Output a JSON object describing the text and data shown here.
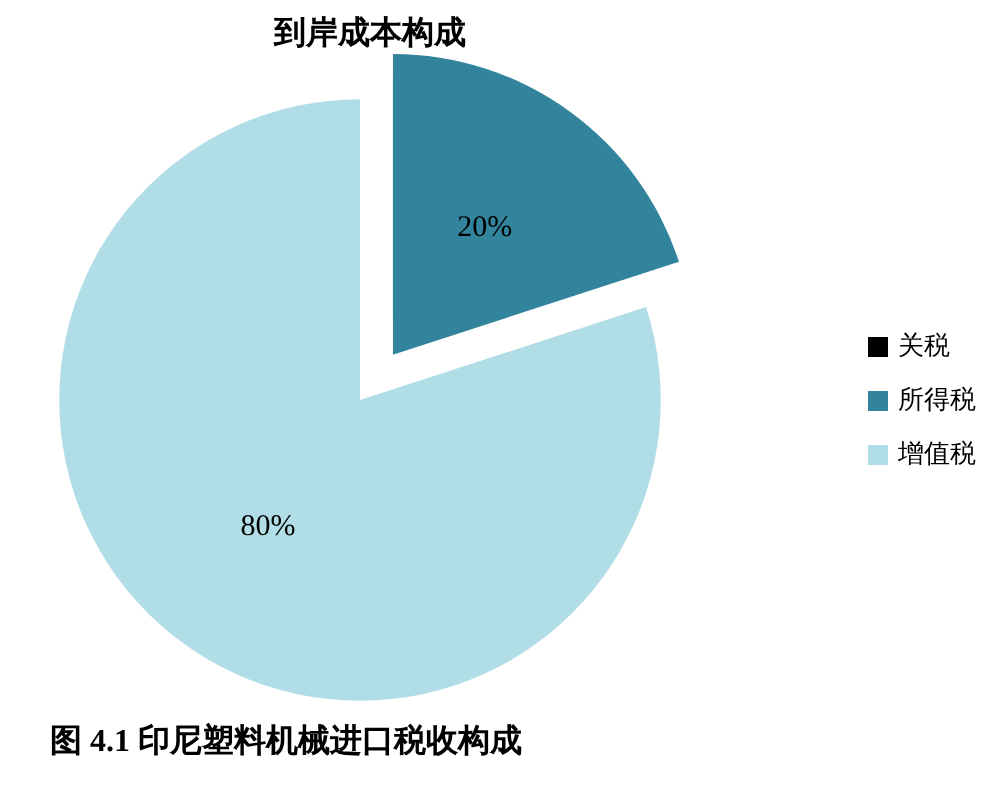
{
  "chart_data": {
    "type": "pie",
    "title": "到岸成本构成",
    "categories": [
      "关税",
      "所得税",
      "增值税"
    ],
    "values": [
      0,
      20,
      80
    ],
    "colors": [
      "#000000",
      "#31849b",
      "#b0dde6"
    ],
    "value_labels": [
      null,
      "20%",
      "80%"
    ],
    "legend": "right",
    "annotations": [
      "图 4.1 印尼塑料机械进口税收构成"
    ]
  }
}
